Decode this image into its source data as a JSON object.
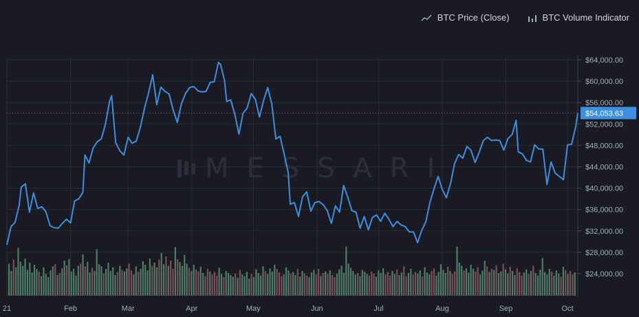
{
  "legend": {
    "price_label": "BTC Price (Close)",
    "volume_label": "BTC Volume Indicator"
  },
  "watermark": {
    "text": "MESSARI"
  },
  "colors": {
    "background": "#1a1b22",
    "price_line": "#3d8fe0",
    "price_tag": "#3d8fe0",
    "volume_up": "#4f7d68",
    "volume_down": "#7d4f5a",
    "grid": "#2a2c35",
    "axis_text": "#a9acb6"
  },
  "chart_data": {
    "type": "line",
    "title": "",
    "xlabel": "",
    "ylabel": "",
    "x_ticks": [
      {
        "label": "21",
        "date": "2021-01-01"
      },
      {
        "label": "Feb",
        "date": "2021-02-01"
      },
      {
        "label": "Mar",
        "date": "2021-03-01"
      },
      {
        "label": "Apr",
        "date": "2021-04-01"
      },
      {
        "label": "May",
        "date": "2021-05-01"
      },
      {
        "label": "Jun",
        "date": "2021-06-01"
      },
      {
        "label": "Jul",
        "date": "2021-07-01"
      },
      {
        "label": "Aug",
        "date": "2021-08-01"
      },
      {
        "label": "Sep",
        "date": "2021-09-01"
      },
      {
        "label": "Oct",
        "date": "2021-10-01"
      }
    ],
    "y_ticks": [
      "$24,000.00",
      "$28,000.00",
      "$32,000.00",
      "$36,000.00",
      "$40,000.00",
      "$44,000.00",
      "$48,000.00",
      "$52,000.00",
      "$56,000.00",
      "$60,000.00",
      "$64,000.00"
    ],
    "y_tick_values": [
      24000,
      28000,
      32000,
      36000,
      40000,
      44000,
      48000,
      52000,
      56000,
      60000,
      64000
    ],
    "ylim": [
      18000,
      68000
    ],
    "xlim": [
      "2021-01-01",
      "2021-10-06"
    ],
    "grid": true,
    "legend_position": "top-right",
    "last_price": {
      "value": 54053.63,
      "label": "$54,053.63"
    },
    "series": [
      {
        "name": "BTC Price (Close)",
        "points": [
          [
            "2021-01-01",
            29400
          ],
          [
            "2021-01-03",
            32800
          ],
          [
            "2021-01-05",
            33600
          ],
          [
            "2021-01-07",
            36800
          ],
          [
            "2021-01-08",
            40200
          ],
          [
            "2021-01-10",
            40800
          ],
          [
            "2021-01-12",
            35500
          ],
          [
            "2021-01-14",
            39100
          ],
          [
            "2021-01-16",
            36200
          ],
          [
            "2021-01-18",
            36500
          ],
          [
            "2021-01-20",
            35600
          ],
          [
            "2021-01-22",
            33000
          ],
          [
            "2021-01-24",
            32600
          ],
          [
            "2021-01-26",
            32500
          ],
          [
            "2021-01-28",
            33400
          ],
          [
            "2021-01-30",
            34200
          ],
          [
            "2021-02-01",
            33500
          ],
          [
            "2021-02-03",
            37600
          ],
          [
            "2021-02-05",
            38000
          ],
          [
            "2021-02-07",
            39200
          ],
          [
            "2021-02-08",
            46200
          ],
          [
            "2021-02-10",
            44700
          ],
          [
            "2021-02-12",
            47500
          ],
          [
            "2021-02-14",
            48700
          ],
          [
            "2021-02-16",
            49200
          ],
          [
            "2021-02-18",
            52000
          ],
          [
            "2021-02-20",
            56200
          ],
          [
            "2021-02-21",
            57300
          ],
          [
            "2021-02-23",
            48500
          ],
          [
            "2021-02-25",
            47000
          ],
          [
            "2021-02-27",
            46200
          ],
          [
            "2021-03-01",
            49500
          ],
          [
            "2021-03-03",
            48400
          ],
          [
            "2021-03-05",
            48800
          ],
          [
            "2021-03-07",
            51400
          ],
          [
            "2021-03-09",
            54900
          ],
          [
            "2021-03-11",
            57800
          ],
          [
            "2021-03-13",
            61200
          ],
          [
            "2021-03-15",
            55600
          ],
          [
            "2021-03-17",
            58900
          ],
          [
            "2021-03-19",
            58100
          ],
          [
            "2021-03-21",
            57600
          ],
          [
            "2021-03-23",
            54600
          ],
          [
            "2021-03-25",
            52300
          ],
          [
            "2021-03-27",
            55800
          ],
          [
            "2021-03-29",
            57700
          ],
          [
            "2021-03-31",
            58800
          ],
          [
            "2021-04-02",
            59000
          ],
          [
            "2021-04-04",
            58200
          ],
          [
            "2021-04-06",
            58000
          ],
          [
            "2021-04-08",
            58100
          ],
          [
            "2021-04-10",
            59800
          ],
          [
            "2021-04-12",
            59900
          ],
          [
            "2021-04-14",
            63500
          ],
          [
            "2021-04-15",
            63200
          ],
          [
            "2021-04-17",
            60100
          ],
          [
            "2021-04-18",
            56200
          ],
          [
            "2021-04-20",
            56500
          ],
          [
            "2021-04-22",
            53800
          ],
          [
            "2021-04-24",
            50100
          ],
          [
            "2021-04-26",
            54000
          ],
          [
            "2021-04-28",
            55000
          ],
          [
            "2021-04-30",
            57700
          ],
          [
            "2021-05-02",
            56600
          ],
          [
            "2021-05-04",
            53300
          ],
          [
            "2021-05-06",
            56400
          ],
          [
            "2021-05-08",
            58800
          ],
          [
            "2021-05-10",
            55800
          ],
          [
            "2021-05-12",
            49200
          ],
          [
            "2021-05-14",
            49700
          ],
          [
            "2021-05-16",
            46400
          ],
          [
            "2021-05-18",
            42900
          ],
          [
            "2021-05-19",
            37000
          ],
          [
            "2021-05-21",
            37300
          ],
          [
            "2021-05-23",
            34700
          ],
          [
            "2021-05-25",
            38400
          ],
          [
            "2021-05-27",
            39300
          ],
          [
            "2021-05-29",
            35700
          ],
          [
            "2021-05-31",
            37300
          ],
          [
            "2021-06-02",
            37500
          ],
          [
            "2021-06-04",
            36900
          ],
          [
            "2021-06-06",
            35800
          ],
          [
            "2021-06-08",
            33400
          ],
          [
            "2021-06-10",
            36700
          ],
          [
            "2021-06-12",
            35500
          ],
          [
            "2021-06-14",
            40500
          ],
          [
            "2021-06-16",
            38300
          ],
          [
            "2021-06-18",
            35800
          ],
          [
            "2021-06-20",
            35500
          ],
          [
            "2021-06-22",
            32500
          ],
          [
            "2021-06-24",
            34700
          ],
          [
            "2021-06-26",
            32200
          ],
          [
            "2021-06-28",
            34500
          ],
          [
            "2021-06-30",
            35000
          ],
          [
            "2021-07-02",
            33800
          ],
          [
            "2021-07-04",
            35300
          ],
          [
            "2021-07-06",
            34200
          ],
          [
            "2021-07-08",
            32800
          ],
          [
            "2021-07-10",
            33800
          ],
          [
            "2021-07-12",
            33100
          ],
          [
            "2021-07-14",
            32800
          ],
          [
            "2021-07-16",
            31800
          ],
          [
            "2021-07-18",
            31800
          ],
          [
            "2021-07-20",
            29800
          ],
          [
            "2021-07-22",
            32100
          ],
          [
            "2021-07-24",
            33700
          ],
          [
            "2021-07-26",
            37300
          ],
          [
            "2021-07-28",
            39900
          ],
          [
            "2021-07-30",
            42200
          ],
          [
            "2021-08-01",
            39800
          ],
          [
            "2021-08-03",
            38200
          ],
          [
            "2021-08-05",
            40800
          ],
          [
            "2021-08-07",
            44600
          ],
          [
            "2021-08-09",
            46300
          ],
          [
            "2021-08-11",
            45600
          ],
          [
            "2021-08-13",
            47800
          ],
          [
            "2021-08-15",
            47100
          ],
          [
            "2021-08-17",
            44800
          ],
          [
            "2021-08-19",
            46700
          ],
          [
            "2021-08-21",
            48900
          ],
          [
            "2021-08-23",
            49500
          ],
          [
            "2021-08-25",
            48900
          ],
          [
            "2021-08-27",
            49000
          ],
          [
            "2021-08-29",
            48900
          ],
          [
            "2021-08-31",
            47100
          ],
          [
            "2021-09-02",
            49300
          ],
          [
            "2021-09-04",
            50000
          ],
          [
            "2021-09-06",
            52700
          ],
          [
            "2021-09-07",
            46800
          ],
          [
            "2021-09-09",
            46400
          ],
          [
            "2021-09-11",
            45200
          ],
          [
            "2021-09-13",
            44900
          ],
          [
            "2021-09-15",
            48100
          ],
          [
            "2021-09-17",
            47300
          ],
          [
            "2021-09-19",
            47300
          ],
          [
            "2021-09-21",
            40700
          ],
          [
            "2021-09-23",
            44900
          ],
          [
            "2021-09-25",
            42800
          ],
          [
            "2021-09-27",
            42200
          ],
          [
            "2021-09-29",
            41600
          ],
          [
            "2021-10-01",
            48100
          ],
          [
            "2021-10-03",
            48200
          ],
          [
            "2021-10-05",
            51500
          ],
          [
            "2021-10-06",
            54053.63
          ]
        ]
      },
      {
        "name": "BTC Volume Indicator",
        "volume_scale_max": 100,
        "values": [
          62,
          48,
          70,
          55,
          93,
          66,
          58,
          72,
          50,
          64,
          45,
          60,
          52,
          47,
          38,
          55,
          42,
          36,
          49,
          57,
          61,
          40,
          44,
          53,
          68,
          59,
          71,
          47,
          52,
          39,
          58,
          62,
          80,
          57,
          66,
          45,
          54,
          48,
          90,
          61,
          57,
          43,
          52,
          64,
          48,
          55,
          40,
          46,
          58,
          50,
          47,
          53,
          62,
          49,
          41,
          57,
          46,
          52,
          67,
          60,
          49,
          72,
          58,
          64,
          55,
          70,
          83,
          61,
          76,
          58,
          68,
          52,
          94,
          71,
          65,
          58,
          79,
          62,
          54,
          48,
          60,
          51,
          47,
          56,
          44,
          38,
          52,
          47,
          41,
          46,
          39,
          54,
          42,
          36,
          48,
          44,
          40,
          37,
          43,
          35,
          50,
          41,
          38,
          46,
          33,
          42,
          36,
          51,
          44,
          39,
          57,
          48,
          42,
          53,
          47,
          60,
          52,
          45,
          38,
          41,
          55,
          49,
          43,
          46,
          40,
          52,
          37,
          48,
          43,
          39,
          36,
          45,
          50,
          41,
          52,
          38,
          44,
          47,
          42,
          49,
          40,
          36,
          43,
          51,
          58,
          45,
          95,
          62,
          54,
          48,
          41,
          44,
          38,
          50,
          46,
          42,
          39,
          47,
          43,
          37,
          49,
          44,
          53,
          41,
          46,
          39,
          48,
          42,
          51,
          40,
          45,
          57,
          38,
          44,
          52,
          41,
          46,
          43,
          49,
          37,
          55,
          45,
          41,
          48,
          53,
          39,
          46,
          61,
          50,
          44,
          56,
          48,
          42,
          47,
          95,
          64,
          58,
          49,
          53,
          45,
          60,
          52,
          47,
          55,
          41,
          49,
          68,
          57,
          46,
          52,
          50,
          59,
          44,
          47,
          62,
          51,
          43,
          56,
          48,
          40,
          53,
          46,
          39,
          45,
          51,
          42,
          48,
          58,
          44,
          39,
          50,
          73,
          46,
          41,
          52,
          47,
          39,
          49,
          43,
          37,
          56,
          50,
          42,
          48,
          41,
          45
        ]
      }
    ]
  }
}
